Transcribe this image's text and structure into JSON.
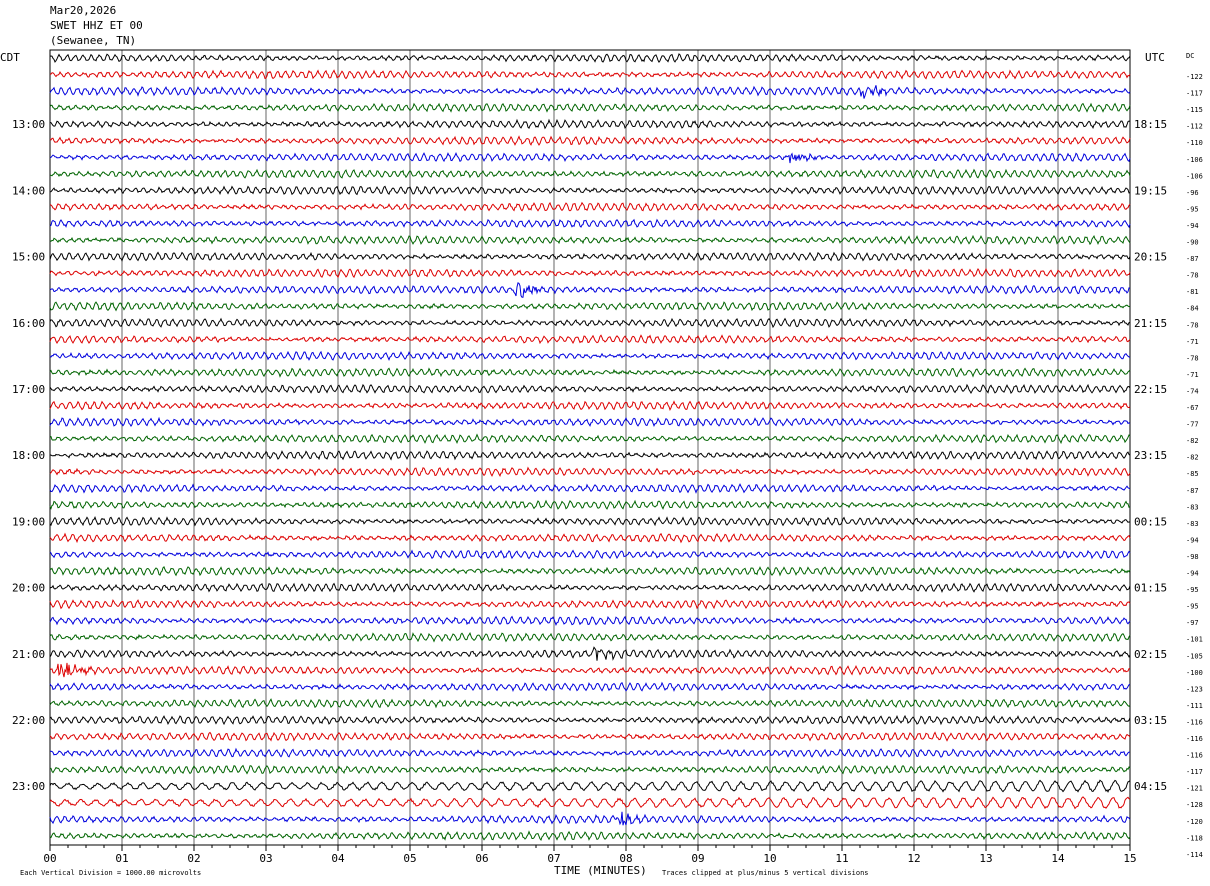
{
  "header": {
    "date": "Mar20,2026",
    "station": "SWET HHZ ET 00",
    "location": "(Sewanee, TN)"
  },
  "left_zone": "CDT",
  "right_zone": "UTC",
  "dc_label": "DC",
  "colors": {
    "palette": [
      "#000000",
      "#dd0000",
      "#0000dd",
      "#006400"
    ],
    "grid": "#000000"
  },
  "footer": {
    "scale_note": "Each Vertical Division = 1000.00 microvolts",
    "xlabel": "TIME (MINUTES)",
    "clip_note": "Traces clipped at plus/minus 5 vertical divisions"
  },
  "chart_data": {
    "type": "line",
    "title": "SWET HHZ ET 00",
    "xlabel": "TIME (MINUTES)",
    "xlim": [
      0,
      15
    ],
    "x_ticks": [
      "00",
      "01",
      "02",
      "03",
      "04",
      "05",
      "06",
      "07",
      "08",
      "09",
      "10",
      "11",
      "12",
      "13",
      "14",
      "15"
    ],
    "left_time_labels": [
      "13:00",
      "14:00",
      "15:00",
      "16:00",
      "17:00",
      "18:00",
      "19:00",
      "20:00",
      "21:00",
      "22:00",
      "23:00"
    ],
    "right_time_labels": [
      "18:15",
      "19:15",
      "20:15",
      "21:15",
      "22:15",
      "23:15",
      "00:15",
      "01:15",
      "02:15",
      "03:15",
      "04:15"
    ],
    "dc_offsets": [
      "-122",
      "-117",
      "-115",
      "-112",
      "-110",
      "-106",
      "-106",
      "-96",
      "-95",
      "-94",
      "-90",
      "-87",
      "-78",
      "-81",
      "-84",
      "-78",
      "-71",
      "-78",
      "-71",
      "-74",
      "-67",
      "-77",
      "-82",
      "-82",
      "-85",
      "-87",
      "-83",
      "-83",
      "-94",
      "-98",
      "-94",
      "-95",
      "-95",
      "-97",
      "-101",
      "-105",
      "-100",
      "-123",
      "-111",
      "-116",
      "-116",
      "-116",
      "-117",
      "-121",
      "-128",
      "-120",
      "-118",
      "-114"
    ],
    "traces_per_hour": 4,
    "grid": true,
    "events": [
      {
        "trace": 2,
        "minute": 11.3,
        "amp": 2.2
      },
      {
        "trace": 6,
        "minute": 10.3,
        "amp": 1.6
      },
      {
        "trace": 14,
        "minute": 6.5,
        "amp": 2.4
      },
      {
        "trace": 36,
        "minute": 7.6,
        "amp": 1.4
      },
      {
        "trace": 37,
        "minute": 0.15,
        "amp": 3.6
      },
      {
        "trace": 46,
        "minute": 7.9,
        "amp": 2.2
      }
    ],
    "large_amplitude_traces": [
      44,
      45
    ]
  }
}
